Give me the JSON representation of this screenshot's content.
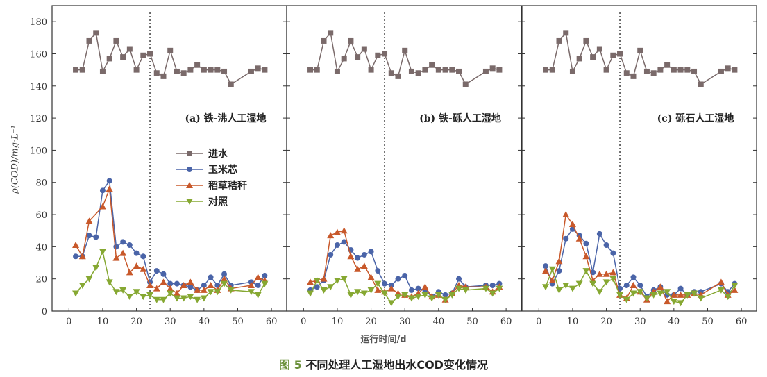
{
  "chart_data": {
    "type": "line",
    "caption_prefix": "图 5",
    "caption": "不同处理人工湿地出水COD变化情况",
    "xlabel": "运行时间/d",
    "ylabel": "ρ(COD)/mg·L⁻¹",
    "xlim": [
      -5,
      64.5
    ],
    "ylim": [
      0,
      190
    ],
    "xticks": [
      0,
      10,
      20,
      30,
      40,
      50,
      60
    ],
    "yticks": [
      0,
      20,
      40,
      60,
      80,
      100,
      120,
      140,
      160,
      180
    ],
    "marker_line_x": 24,
    "legend": {
      "position": "center-left of panel (a)",
      "entries": [
        "进水",
        "玉米芯",
        "稻草秸秆",
        "对照"
      ]
    },
    "colors": {
      "进水": "#7a6a6a",
      "玉米芯": "#4a64a8",
      "稻草秸秆": "#c8582a",
      "对照": "#86a832"
    },
    "x": [
      2,
      4,
      6,
      8,
      10,
      12,
      14,
      16,
      18,
      20,
      22,
      24,
      26,
      28,
      30,
      32,
      34,
      36,
      38,
      40,
      42,
      44,
      46,
      48,
      54,
      56,
      58
    ],
    "panels": [
      {
        "title": "(a) 铁-沸人工湿地",
        "series": [
          {
            "name": "进水",
            "marker": "square",
            "values": [
              150,
              150,
              168,
              173,
              149,
              157,
              168,
              158,
              163,
              150,
              159,
              160,
              148,
              146,
              162,
              149,
              148,
              150,
              153,
              150,
              150,
              150,
              149,
              141,
              149,
              151,
              150
            ]
          },
          {
            "name": "玉米芯",
            "marker": "circle",
            "values": [
              34,
              34,
              47,
              46,
              75,
              81,
              40,
              43,
              41,
              36,
              34,
              18,
              25,
              23,
              17,
              17,
              16,
              15,
              13,
              16,
              21,
              16,
              23,
              16,
              18,
              16,
              22
            ]
          },
          {
            "name": "稻草秸秆",
            "marker": "triangle-up",
            "values": [
              41,
              34,
              56,
              null,
              65,
              76,
              33,
              36,
              24,
              28,
              26,
              16,
              14,
              18,
              14,
              11,
              16,
              18,
              13,
              13,
              16,
              13,
              20,
              14,
              16,
              21,
              19
            ]
          },
          {
            "name": "对照",
            "marker": "triangle-down",
            "values": [
              11,
              16,
              20,
              27,
              37,
              18,
              12,
              13,
              9,
              12,
              9,
              10,
              7,
              7,
              11,
              8,
              8,
              9,
              7,
              8,
              12,
              12,
              17,
              13,
              12,
              10,
              17
            ]
          }
        ]
      },
      {
        "title": "(b) 铁-砾人工湿地",
        "series": [
          {
            "name": "进水",
            "marker": "square",
            "values": [
              150,
              150,
              168,
              173,
              149,
              157,
              168,
              158,
              163,
              150,
              159,
              160,
              148,
              146,
              162,
              149,
              148,
              150,
              153,
              150,
              150,
              150,
              149,
              141,
              149,
              151,
              150
            ]
          },
          {
            "name": "玉米芯",
            "marker": "circle",
            "values": [
              13,
              15,
              19,
              35,
              41,
              43,
              38,
              33,
              35,
              37,
              25,
              17,
              16,
              20,
              22,
              13,
              14,
              13,
              9,
              12,
              10,
              11,
              20,
              15,
              16,
              16,
              17
            ]
          },
          {
            "name": "稻草秸秆",
            "marker": "triangle-up",
            "values": [
              18,
              19,
              20,
              47,
              49,
              50,
              34,
              26,
              28,
              21,
              13,
              12,
              14,
              11,
              10,
              9,
              11,
              15,
              9,
              10,
              7,
              11,
              16,
              15,
              15,
              12,
              15
            ]
          },
          {
            "name": "对照",
            "marker": "triangle-down",
            "values": [
              11,
              19,
              13,
              15,
              19,
              20,
              10,
              12,
              11,
              13,
              17,
              11,
              5,
              9,
              10,
              8,
              9,
              10,
              8,
              10,
              7,
              10,
              14,
              13,
              14,
              11,
              14
            ]
          }
        ]
      },
      {
        "title": "(c) 砾石人工湿地",
        "series": [
          {
            "name": "进水",
            "marker": "square",
            "values": [
              150,
              150,
              168,
              173,
              149,
              157,
              168,
              158,
              163,
              150,
              159,
              160,
              148,
              146,
              162,
              149,
              148,
              150,
              153,
              150,
              150,
              150,
              149,
              141,
              149,
              151,
              150
            ]
          },
          {
            "name": "玉米芯",
            "marker": "circle",
            "values": [
              28,
              17,
              25,
              45,
              51,
              47,
              42,
              24,
              48,
              41,
              36,
              14,
              16,
              21,
              16,
              9,
              13,
              15,
              10,
              10,
              14,
              10,
              12,
              12,
              17,
              12,
              17
            ]
          },
          {
            "name": "稻草秸秆",
            "marker": "triangle-up",
            "values": [
              25,
              19,
              31,
              60,
              54,
              45,
              34,
              19,
              23,
              23,
              24,
              10,
              8,
              16,
              12,
              7,
              12,
              15,
              6,
              10,
              10,
              10,
              11,
              10,
              18,
              10,
              13
            ]
          },
          {
            "name": "对照",
            "marker": "triangle-down",
            "values": [
              15,
              26,
              13,
              16,
              14,
              17,
              25,
              17,
              12,
              18,
              20,
              10,
              7,
              11,
              12,
              8,
              10,
              11,
              12,
              6,
              5,
              10,
              11,
              8,
              13,
              9,
              16
            ]
          }
        ]
      }
    ]
  }
}
